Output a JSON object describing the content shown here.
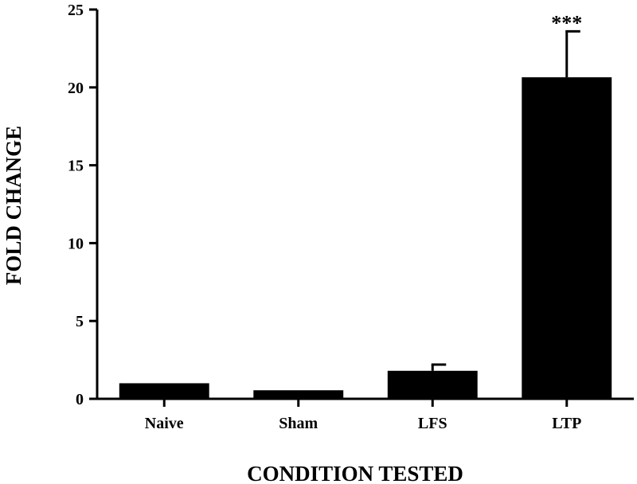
{
  "chart_data": {
    "type": "bar",
    "title": "",
    "xlabel": "CONDITION TESTED",
    "ylabel": "FOLD CHANGE",
    "categories": [
      "Naive",
      "Sham",
      "LFS",
      "LTP"
    ],
    "values": [
      1.0,
      0.55,
      1.8,
      20.65
    ],
    "errors": [
      0.0,
      0.0,
      0.4,
      2.95
    ],
    "annotations": [
      {
        "category": "LTP",
        "text": "***"
      }
    ],
    "ylim": [
      0,
      25
    ],
    "yticks": [
      0,
      5,
      10,
      15,
      20,
      25
    ],
    "grid": false,
    "bar_color": "#000000"
  }
}
